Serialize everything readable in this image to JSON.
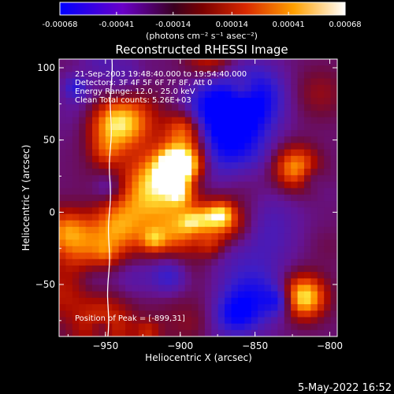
{
  "colorbar": {
    "ticks": [
      "-0.00068",
      "-0.00041",
      "-0.00014",
      "0.00014",
      "0.00041",
      "0.00068"
    ],
    "tick_values": [
      -0.00068,
      -0.00041,
      -0.00014,
      0.00014,
      0.00041,
      0.00068
    ],
    "range": [
      -0.00068,
      0.00068
    ],
    "unit_label": "(photons cm⁻² s⁻¹ asec⁻²)"
  },
  "chart_data": {
    "type": "heatmap",
    "title": "Reconstructed RHESSI Image",
    "xlabel": "Heliocentric X (arcsec)",
    "ylabel": "Heliocentric Y (arcsec)",
    "xlim": [
      -981,
      -795
    ],
    "ylim": [
      -86,
      106
    ],
    "x_ticks": [
      {
        "value": -950,
        "label": "−950"
      },
      {
        "value": -900,
        "label": "−900"
      },
      {
        "value": -850,
        "label": "−850"
      },
      {
        "value": -800,
        "label": "−800"
      }
    ],
    "y_ticks": [
      {
        "value": -50,
        "label": "−50"
      },
      {
        "value": 0,
        "label": "0"
      },
      {
        "value": 50,
        "label": "50"
      },
      {
        "value": 100,
        "label": "100"
      }
    ],
    "colormap": [
      "#0000ff",
      "#6a00c8",
      "#7a0030",
      "#b41400",
      "#ff6400",
      "#ffdc00",
      "#ffffff"
    ],
    "annotations": [
      "21-Sep-2003 19:48:40.000 to 19:54:40.000",
      "Detectors: 3F 4F 5F 6F 7F 8F, Att 0",
      "Energy Range: 12.0 - 25.0 keV",
      "Clean    Total counts: 5.26E+03"
    ],
    "peak_label": "Position of Peak = [-899,31]",
    "peak": {
      "x": -899,
      "y": 31
    },
    "limb_line_color": "#ffffff"
  },
  "footer": {
    "date": "5-May-2022 16:52"
  }
}
